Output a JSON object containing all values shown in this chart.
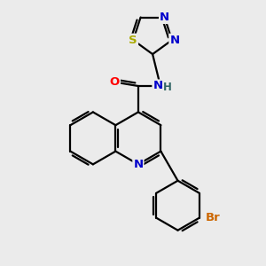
{
  "bg_color": "#ebebeb",
  "atom_colors": {
    "C": "#000000",
    "N": "#0000cc",
    "O": "#ff0000",
    "S": "#aaaa00",
    "Br": "#cc6600",
    "H": "#336666"
  },
  "bond_color": "#000000",
  "bond_lw": 1.6,
  "fig_size": [
    3.0,
    3.0
  ],
  "dpi": 100,
  "xlim": [
    0,
    10
  ],
  "ylim": [
    0,
    10
  ]
}
